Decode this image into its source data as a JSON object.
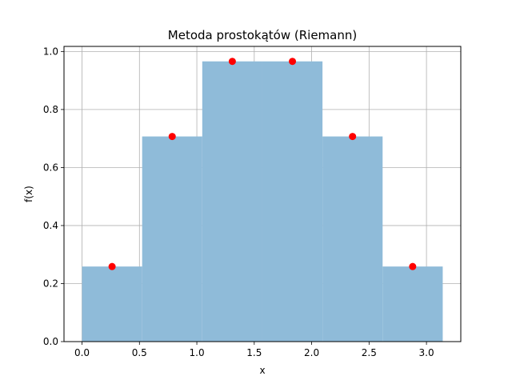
{
  "chart_data": {
    "type": "bar",
    "title": "Metoda prostokątów (Riemann)",
    "xlabel": "x",
    "ylabel": "f(x)",
    "xlim": [
      -0.157,
      3.299
    ],
    "ylim": [
      0.0,
      1.0175
    ],
    "grid": true,
    "x_ticks": [
      "0.0",
      "0.5",
      "1.0",
      "1.5",
      "2.0",
      "2.5",
      "3.0"
    ],
    "y_ticks": [
      "0.0",
      "0.2",
      "0.4",
      "0.6",
      "0.8",
      "1.0"
    ],
    "bars": {
      "edges": [
        0.0,
        0.5236,
        1.0472,
        1.5708,
        2.0944,
        2.618,
        3.1416
      ],
      "values": [
        0.2588,
        0.7071,
        0.9659,
        0.9659,
        0.7071,
        0.2588
      ],
      "color": "#8fbbd9"
    },
    "points": {
      "x": [
        0.2618,
        0.7854,
        1.309,
        1.8326,
        2.3562,
        2.8798
      ],
      "y": [
        0.2588,
        0.7071,
        0.9659,
        0.9659,
        0.7071,
        0.2588
      ],
      "color": "#ff0000"
    }
  }
}
